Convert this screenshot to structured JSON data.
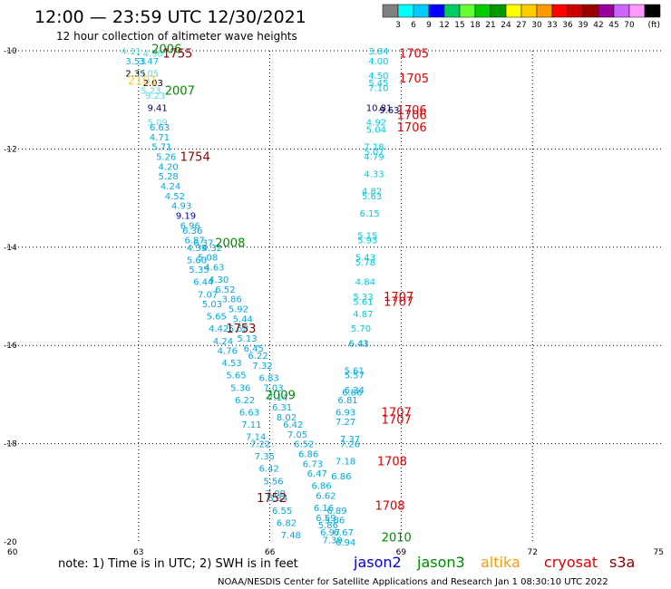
{
  "header": {
    "title": "12:00 — 23:59 UTC 12/30/2021",
    "subtitle": "12 hour collection of altimeter wave heights"
  },
  "colorbar": {
    "colors": [
      "#808080",
      "#00ffff",
      "#00ccff",
      "#0000ff",
      "#00cc66",
      "#66ff33",
      "#00cc00",
      "#009900",
      "#ffff00",
      "#ffcc00",
      "#ff9900",
      "#ff0000",
      "#cc0000",
      "#990000",
      "#990099",
      "#cc66ff",
      "#ff99ff",
      "#000000"
    ],
    "labels": [
      "3",
      "6",
      "9",
      "12",
      "15",
      "18",
      "21",
      "24",
      "27",
      "30",
      "33",
      "36",
      "39",
      "42",
      "45",
      "70"
    ],
    "unit": "(ft)"
  },
  "footer": {
    "note": "note:  1) Time is in UTC; 2) SWH is in feet",
    "credit": "NOAA/NESDIS Center for Satellite Applications and Research    Jan  1 08:30:10 UTC 2022"
  },
  "missions": [
    {
      "name": "jason2",
      "color": "#0000dd"
    },
    {
      "name": "jason3",
      "color": "#008800"
    },
    {
      "name": "altika",
      "color": "#ff9900"
    },
    {
      "name": "cryosat",
      "color": "#dd0000"
    },
    {
      "name": "s3a",
      "color": "#880000"
    }
  ],
  "chart_data": {
    "type": "scatter",
    "xlim": [
      60,
      75
    ],
    "ylim": [
      -20,
      -10
    ],
    "x_ticks": [
      60,
      63,
      66,
      69,
      72,
      75
    ],
    "y_ticks": [
      -10,
      -12,
      -14,
      -16,
      -18,
      -20
    ],
    "grid": true,
    "points": [
      {
        "x": 62.6,
        "y": -10.0,
        "v": 4.11,
        "c": "#55dddd"
      },
      {
        "x": 63.1,
        "y": -10.05,
        "v": 4.98,
        "c": "#55dddd"
      },
      {
        "x": 62.7,
        "y": -10.2,
        "v": 3.53,
        "c": "#00bbdd"
      },
      {
        "x": 63.0,
        "y": -10.2,
        "v": 3.47,
        "c": "#00bbdd"
      },
      {
        "x": 62.7,
        "y": -10.45,
        "v": 2.35,
        "c": "#000000"
      },
      {
        "x": 63.0,
        "y": -10.45,
        "v": 3.05,
        "c": "#55dddd"
      },
      {
        "x": 63.1,
        "y": -10.65,
        "v": 2.03,
        "c": "#000000"
      },
      {
        "x": 63.05,
        "y": -10.8,
        "v": 5.23,
        "c": "#55dddd"
      },
      {
        "x": 63.15,
        "y": -10.9,
        "v": 9.23,
        "c": "#55dddd"
      },
      {
        "x": 63.2,
        "y": -11.15,
        "v": 9.41,
        "c": "#000066"
      },
      {
        "x": 63.2,
        "y": -11.45,
        "v": 5.09,
        "c": "#55dddd"
      },
      {
        "x": 63.25,
        "y": -11.55,
        "v": 6.63,
        "c": "#00aadd"
      },
      {
        "x": 63.25,
        "y": -11.75,
        "v": 4.71,
        "c": "#00aadd"
      },
      {
        "x": 63.3,
        "y": -11.95,
        "v": 5.71,
        "c": "#00aadd"
      },
      {
        "x": 63.4,
        "y": -12.15,
        "v": 5.26,
        "c": "#00aadd"
      },
      {
        "x": 63.45,
        "y": -12.35,
        "v": 4.2,
        "c": "#00aadd"
      },
      {
        "x": 63.45,
        "y": -12.55,
        "v": 5.28,
        "c": "#00aadd"
      },
      {
        "x": 63.5,
        "y": -12.75,
        "v": 4.24,
        "c": "#00aadd"
      },
      {
        "x": 63.6,
        "y": -12.95,
        "v": 4.52,
        "c": "#00aadd"
      },
      {
        "x": 63.75,
        "y": -13.15,
        "v": 4.93,
        "c": "#00aadd"
      },
      {
        "x": 63.85,
        "y": -13.35,
        "v": 9.19,
        "c": "#0000aa"
      },
      {
        "x": 63.95,
        "y": -13.55,
        "v": 6.96,
        "c": "#00aadd"
      },
      {
        "x": 64.0,
        "y": -13.65,
        "v": 6.36,
        "c": "#00aadd"
      },
      {
        "x": 64.05,
        "y": -13.85,
        "v": 6.87,
        "c": "#00aadd"
      },
      {
        "x": 64.25,
        "y": -13.9,
        "v": 6.37,
        "c": "#00aadd"
      },
      {
        "x": 64.1,
        "y": -14.0,
        "v": 4.39,
        "c": "#00aadd"
      },
      {
        "x": 64.45,
        "y": -14.0,
        "v": 4.32,
        "c": "#00aadd"
      },
      {
        "x": 64.35,
        "y": -14.2,
        "v": 5.08,
        "c": "#00aadd"
      },
      {
        "x": 64.1,
        "y": -14.25,
        "v": 5.6,
        "c": "#00aadd"
      },
      {
        "x": 64.5,
        "y": -14.4,
        "v": 4.63,
        "c": "#00aadd"
      },
      {
        "x": 64.15,
        "y": -14.45,
        "v": 5.35,
        "c": "#00aadd"
      },
      {
        "x": 64.6,
        "y": -14.65,
        "v": 4.3,
        "c": "#00aadd"
      },
      {
        "x": 64.25,
        "y": -14.7,
        "v": 6.44,
        "c": "#00aadd"
      },
      {
        "x": 64.75,
        "y": -14.85,
        "v": 6.52,
        "c": "#00aadd"
      },
      {
        "x": 64.35,
        "y": -14.95,
        "v": 7.07,
        "c": "#00aadd"
      },
      {
        "x": 64.9,
        "y": -15.05,
        "v": 3.86,
        "c": "#00aadd"
      },
      {
        "x": 64.45,
        "y": -15.15,
        "v": 5.03,
        "c": "#00aadd"
      },
      {
        "x": 65.05,
        "y": -15.25,
        "v": 5.92,
        "c": "#00aadd"
      },
      {
        "x": 64.55,
        "y": -15.4,
        "v": 5.65,
        "c": "#00aadd"
      },
      {
        "x": 65.15,
        "y": -15.45,
        "v": 5.44,
        "c": "#00aadd"
      },
      {
        "x": 64.6,
        "y": -15.65,
        "v": 4.42,
        "c": "#00aadd"
      },
      {
        "x": 65.05,
        "y": -15.65,
        "v": 5.58,
        "c": "#00aadd"
      },
      {
        "x": 65.25,
        "y": -15.85,
        "v": 5.13,
        "c": "#00aadd"
      },
      {
        "x": 64.7,
        "y": -15.9,
        "v": 4.24,
        "c": "#00aadd"
      },
      {
        "x": 65.4,
        "y": -16.05,
        "v": 6.45,
        "c": "#00aadd"
      },
      {
        "x": 64.8,
        "y": -16.1,
        "v": 4.76,
        "c": "#00aadd"
      },
      {
        "x": 65.5,
        "y": -16.2,
        "v": 6.22,
        "c": "#00aadd"
      },
      {
        "x": 64.9,
        "y": -16.35,
        "v": 4.53,
        "c": "#00aadd"
      },
      {
        "x": 65.6,
        "y": -16.4,
        "v": 7.32,
        "c": "#00aadd"
      },
      {
        "x": 65.0,
        "y": -16.6,
        "v": 5.65,
        "c": "#00aadd"
      },
      {
        "x": 65.75,
        "y": -16.65,
        "v": 6.83,
        "c": "#00aadd"
      },
      {
        "x": 65.1,
        "y": -16.85,
        "v": 5.36,
        "c": "#00aadd"
      },
      {
        "x": 65.85,
        "y": -16.85,
        "v": 7.03,
        "c": "#00aadd"
      },
      {
        "x": 65.2,
        "y": -17.1,
        "v": 6.22,
        "c": "#00aadd"
      },
      {
        "x": 65.95,
        "y": -17.05,
        "v": 7.14,
        "c": "#00aadd"
      },
      {
        "x": 66.05,
        "y": -17.25,
        "v": 6.31,
        "c": "#00aadd"
      },
      {
        "x": 65.3,
        "y": -17.35,
        "v": 6.63,
        "c": "#00aadd"
      },
      {
        "x": 66.15,
        "y": -17.45,
        "v": 8.02,
        "c": "#00aadd"
      },
      {
        "x": 65.35,
        "y": -17.6,
        "v": 7.11,
        "c": "#00aadd"
      },
      {
        "x": 66.3,
        "y": -17.6,
        "v": 6.42,
        "c": "#00aadd"
      },
      {
        "x": 66.4,
        "y": -17.8,
        "v": 7.05,
        "c": "#00aadd"
      },
      {
        "x": 65.45,
        "y": -17.85,
        "v": 7.14,
        "c": "#00aadd"
      },
      {
        "x": 65.55,
        "y": -18.0,
        "v": 7.22,
        "c": "#00aadd"
      },
      {
        "x": 66.55,
        "y": -18.0,
        "v": 6.52,
        "c": "#00aadd"
      },
      {
        "x": 66.65,
        "y": -18.2,
        "v": 6.86,
        "c": "#00aadd"
      },
      {
        "x": 65.65,
        "y": -18.25,
        "v": 7.35,
        "c": "#00aadd"
      },
      {
        "x": 66.75,
        "y": -18.4,
        "v": 6.73,
        "c": "#00aadd"
      },
      {
        "x": 65.75,
        "y": -18.5,
        "v": 6.42,
        "c": "#00aadd"
      },
      {
        "x": 66.85,
        "y": -18.6,
        "v": 6.47,
        "c": "#00aadd"
      },
      {
        "x": 65.85,
        "y": -18.75,
        "v": 5.56,
        "c": "#00aadd"
      },
      {
        "x": 66.95,
        "y": -18.85,
        "v": 6.86,
        "c": "#00aadd"
      },
      {
        "x": 65.9,
        "y": -19.0,
        "v": 7.09,
        "c": "#00aadd"
      },
      {
        "x": 67.05,
        "y": -19.05,
        "v": 6.62,
        "c": "#00aadd"
      },
      {
        "x": 65.95,
        "y": -19.1,
        "v": 6.34,
        "c": "#00aadd"
      },
      {
        "x": 67.0,
        "y": -19.3,
        "v": 6.16,
        "c": "#00aadd"
      },
      {
        "x": 66.05,
        "y": -19.35,
        "v": 6.55,
        "c": "#00aadd"
      },
      {
        "x": 67.05,
        "y": -19.5,
        "v": 6.59,
        "c": "#00aadd"
      },
      {
        "x": 67.1,
        "y": -19.65,
        "v": 5.86,
        "c": "#00aadd"
      },
      {
        "x": 66.15,
        "y": -19.6,
        "v": 6.82,
        "c": "#00aadd"
      },
      {
        "x": 67.15,
        "y": -19.8,
        "v": 6.97,
        "c": "#00aadd"
      },
      {
        "x": 66.25,
        "y": -19.85,
        "v": 7.48,
        "c": "#00aadd"
      },
      {
        "x": 67.2,
        "y": -19.95,
        "v": 7.39,
        "c": "#00aadd"
      },
      {
        "x": 67.5,
        "y": -20.0,
        "v": 6.94,
        "c": "#00aadd"
      },
      {
        "x": 67.45,
        "y": -19.8,
        "v": 6.67,
        "c": "#00aadd"
      },
      {
        "x": 67.25,
        "y": -19.55,
        "v": 5.86,
        "c": "#00aadd"
      },
      {
        "x": 67.3,
        "y": -19.35,
        "v": 6.89,
        "c": "#00aadd"
      },
      {
        "x": 67.4,
        "y": -18.65,
        "v": 6.86,
        "c": "#00aadd"
      },
      {
        "x": 67.5,
        "y": -18.35,
        "v": 7.18,
        "c": "#00aadd"
      },
      {
        "x": 67.6,
        "y": -18.0,
        "v": 7.26,
        "c": "#00aadd"
      },
      {
        "x": 67.6,
        "y": -17.9,
        "v": 7.37,
        "c": "#00aadd"
      },
      {
        "x": 67.5,
        "y": -17.55,
        "v": 7.27,
        "c": "#00aadd"
      },
      {
        "x": 67.5,
        "y": -17.35,
        "v": 6.93,
        "c": "#00aadd"
      },
      {
        "x": 67.55,
        "y": -17.1,
        "v": 6.81,
        "c": "#00aadd"
      },
      {
        "x": 67.65,
        "y": -16.95,
        "v": 6.86,
        "c": "#00aadd"
      },
      {
        "x": 67.7,
        "y": -16.9,
        "v": 6.34,
        "c": "#00aadd"
      },
      {
        "x": 67.7,
        "y": -16.6,
        "v": 5.57,
        "c": "#00aadd"
      },
      {
        "x": 67.7,
        "y": -16.5,
        "v": 5.61,
        "c": "#00aadd"
      },
      {
        "x": 67.8,
        "y": -15.95,
        "v": 6.43,
        "c": "#00aadd"
      },
      {
        "x": 67.8,
        "y": -15.95,
        "v": 6.41,
        "c": "#00aadd"
      },
      {
        "x": 67.85,
        "y": -15.65,
        "v": 5.7,
        "c": "#00ccdd"
      },
      {
        "x": 67.9,
        "y": -15.35,
        "v": 4.87,
        "c": "#00ccdd"
      },
      {
        "x": 67.9,
        "y": -15.1,
        "v": 5.61,
        "c": "#00ccdd"
      },
      {
        "x": 67.9,
        "y": -15.0,
        "v": 5.33,
        "c": "#00ccdd"
      },
      {
        "x": 67.95,
        "y": -14.7,
        "v": 4.84,
        "c": "#00ccdd"
      },
      {
        "x": 67.95,
        "y": -14.3,
        "v": 5.78,
        "c": "#00ccdd"
      },
      {
        "x": 67.95,
        "y": -14.2,
        "v": 5.43,
        "c": "#00ccdd"
      },
      {
        "x": 68.0,
        "y": -13.85,
        "v": 5.93,
        "c": "#00ccdd"
      },
      {
        "x": 68.0,
        "y": -13.75,
        "v": 5.15,
        "c": "#00ccdd"
      },
      {
        "x": 68.05,
        "y": -13.3,
        "v": 6.15,
        "c": "#00ccdd"
      },
      {
        "x": 68.1,
        "y": -12.95,
        "v": 5.63,
        "c": "#00ccdd"
      },
      {
        "x": 68.1,
        "y": -12.85,
        "v": 4.82,
        "c": "#00ccdd"
      },
      {
        "x": 68.15,
        "y": -12.5,
        "v": 4.33,
        "c": "#00ccdd"
      },
      {
        "x": 68.15,
        "y": -12.15,
        "v": 4.79,
        "c": "#00ccdd"
      },
      {
        "x": 68.15,
        "y": -12.05,
        "v": 5.07,
        "c": "#00ccdd"
      },
      {
        "x": 68.15,
        "y": -11.95,
        "v": 7.18,
        "c": "#00ccdd"
      },
      {
        "x": 68.2,
        "y": -11.6,
        "v": 5.04,
        "c": "#00ccdd"
      },
      {
        "x": 68.2,
        "y": -11.45,
        "v": 4.92,
        "c": "#00ccdd"
      },
      {
        "x": 68.2,
        "y": -11.15,
        "v": 10.81,
        "c": "#000066"
      },
      {
        "x": 68.5,
        "y": -11.2,
        "v": 9.63,
        "c": "#000066"
      },
      {
        "x": 68.25,
        "y": -10.75,
        "v": 7.1,
        "c": "#00ccdd"
      },
      {
        "x": 68.25,
        "y": -10.65,
        "v": 5.45,
        "c": "#00ccdd"
      },
      {
        "x": 68.25,
        "y": -10.5,
        "v": 4.5,
        "c": "#00ccdd"
      },
      {
        "x": 68.25,
        "y": -10.2,
        "v": 4.0,
        "c": "#00ccdd"
      },
      {
        "x": 68.25,
        "y": -10.0,
        "v": 3.84,
        "c": "#00ccdd"
      }
    ],
    "time_labels": [
      {
        "x": 63.3,
        "y": -9.95,
        "text": "2006",
        "c": "#008800"
      },
      {
        "x": 63.55,
        "y": -10.05,
        "text": "1755",
        "c": "#880000"
      },
      {
        "x": 62.75,
        "y": -10.6,
        "text": "2101",
        "c": "#ffcc33"
      },
      {
        "x": 63.6,
        "y": -10.8,
        "text": "2007",
        "c": "#008800"
      },
      {
        "x": 63.95,
        "y": -12.15,
        "text": "1754",
        "c": "#880000"
      },
      {
        "x": 64.75,
        "y": -13.9,
        "text": "2008",
        "c": "#008800"
      },
      {
        "x": 65.0,
        "y": -15.65,
        "text": "1753",
        "c": "#880000"
      },
      {
        "x": 65.9,
        "y": -17.0,
        "text": "2009",
        "c": "#008800"
      },
      {
        "x": 65.7,
        "y": -19.1,
        "text": "1752",
        "c": "#880000"
      },
      {
        "x": 68.55,
        "y": -19.9,
        "text": "2010",
        "c": "#008800"
      },
      {
        "x": 68.95,
        "y": -10.05,
        "text": "1705",
        "c": "#dd0000"
      },
      {
        "x": 68.95,
        "y": -10.55,
        "text": "1705",
        "c": "#dd0000"
      },
      {
        "x": 68.9,
        "y": -11.2,
        "text": "1706",
        "c": "#dd0000"
      },
      {
        "x": 68.9,
        "y": -11.3,
        "text": "1706",
        "c": "#dd0000"
      },
      {
        "x": 68.9,
        "y": -11.55,
        "text": "1706",
        "c": "#dd0000"
      },
      {
        "x": 68.6,
        "y": -15.0,
        "text": "1707",
        "c": "#dd0000"
      },
      {
        "x": 68.6,
        "y": -15.1,
        "text": "1707",
        "c": "#dd0000"
      },
      {
        "x": 68.55,
        "y": -17.35,
        "text": "1707",
        "c": "#dd0000"
      },
      {
        "x": 68.55,
        "y": -17.5,
        "text": "1707",
        "c": "#dd0000"
      },
      {
        "x": 68.45,
        "y": -18.35,
        "text": "1708",
        "c": "#dd0000"
      },
      {
        "x": 68.4,
        "y": -19.25,
        "text": "1708",
        "c": "#dd0000"
      }
    ]
  }
}
